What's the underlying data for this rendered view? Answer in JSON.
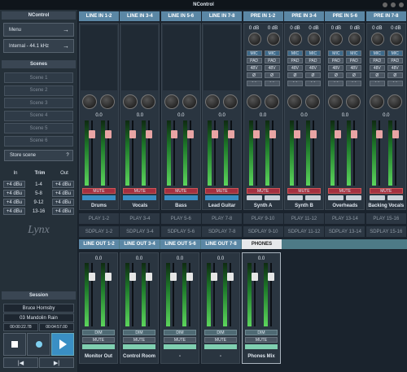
{
  "title": "NControl",
  "sidebar": {
    "header": "NControl",
    "menu": "Menu",
    "clock": "Internal - 44.1 kHz",
    "scenes_title": "Scenes",
    "scenes": [
      "Scene 1",
      "Scene 2",
      "Scene 3",
      "Scene 4",
      "Scene 5",
      "Scene 6"
    ],
    "store_scene": "Store scene",
    "help": "?",
    "trim_headers": [
      "In",
      "Trim",
      "Out"
    ],
    "trim_rows": [
      [
        "+4 dBu",
        "1-4",
        "+4 dBu"
      ],
      [
        "+4 dBu",
        "5-8",
        "+4 dBu"
      ],
      [
        "+4 dBu",
        "9-12",
        "+4 dBu"
      ],
      [
        "+4 dBu",
        "13-16",
        "+4 dBu"
      ]
    ],
    "logo": "Lynx",
    "session": {
      "title": "Session",
      "artist": "Bruce Hornsby",
      "song": "03 Mandolin Rain",
      "position": "00:00:22.78",
      "length": "00:04:57.00"
    }
  },
  "inputs": [
    {
      "tab": "LINE IN 1-2",
      "level": "0.0",
      "mute": "MUTE",
      "name": "Drums"
    },
    {
      "tab": "LINE IN 3-4",
      "level": "0.0",
      "mute": "MUTE",
      "name": "Vocals"
    },
    {
      "tab": "LINE IN 5-6",
      "level": "0.0",
      "mute": "MUTE",
      "name": "Bass"
    },
    {
      "tab": "LINE IN 7-8",
      "level": "0.0",
      "mute": "MUTE",
      "name": "Lead Guitar"
    },
    {
      "tab": "PRE IN 1-2",
      "level": "0.0",
      "mute": "MUTE",
      "name": "Synth A",
      "pre": {
        "gain": [
          "0 dB",
          "0 dB"
        ],
        "buttons": [
          [
            "MIC",
            "MIC"
          ],
          [
            "PAD",
            "PAD"
          ],
          [
            "48V",
            "48V"
          ],
          [
            "Ø",
            "Ø"
          ]
        ]
      }
    },
    {
      "tab": "PRE IN 3-4",
      "level": "0.0",
      "mute": "MUTE",
      "name": "Synth B",
      "pre": {
        "gain": [
          "0 dB",
          "0 dB"
        ],
        "buttons": [
          [
            "MIC",
            "MIC"
          ],
          [
            "PAD",
            "PAD"
          ],
          [
            "48V",
            "48V"
          ],
          [
            "Ø",
            "Ø"
          ]
        ]
      }
    },
    {
      "tab": "PRE IN 5-6",
      "level": "0.0",
      "mute": "MUTE",
      "name": "Overheads",
      "pre": {
        "gain": [
          "0 dB",
          "0 dB"
        ],
        "buttons": [
          [
            "MIC",
            "MIC"
          ],
          [
            "PAD",
            "PAD"
          ],
          [
            "48V",
            "48V"
          ],
          [
            "Ø",
            "Ø"
          ]
        ]
      }
    },
    {
      "tab": "PRE IN 7-8",
      "level": "0.0",
      "mute": "MUTE",
      "name": "Backing Vocals",
      "pre": {
        "gain": [
          "0 dB",
          "0 dB"
        ],
        "buttons": [
          [
            "MIC",
            "MIC"
          ],
          [
            "PAD",
            "PAD"
          ],
          [
            "48V",
            "48V"
          ],
          [
            "Ø",
            "Ø"
          ]
        ]
      }
    }
  ],
  "play": [
    "PLAY 1-2",
    "PLAY 3-4",
    "PLAY 5-6",
    "PLAY 7-8",
    "PLAY 9-10",
    "PLAY 11-12",
    "PLAY 13-14",
    "PLAY 15-16"
  ],
  "sdplay": [
    "SDPLAY 1-2",
    "SDPLAY 3-4",
    "SDPLAY 5-6",
    "SDPLAY 7-8",
    "SDPLAY 9-10",
    "SDPLAY 11-12",
    "SDPLAY 13-14",
    "SDPLAY 15-16"
  ],
  "outputs": [
    {
      "tab": "LINE OUT 1-2",
      "level": "0.0",
      "dim": "DIM",
      "mute": "MUTE",
      "name": "Monitor Out"
    },
    {
      "tab": "LINE OUT 3-4",
      "level": "0.0",
      "dim": "DIM",
      "mute": "MUTE",
      "name": "Control Room"
    },
    {
      "tab": "LINE OUT 5-6",
      "level": "0.0",
      "dim": "DIM",
      "mute": "MUTE",
      "name": "-"
    },
    {
      "tab": "LINE OUT 7-8",
      "level": "0.0",
      "dim": "DIM",
      "mute": "MUTE",
      "name": "-"
    },
    {
      "tab": "PHONES",
      "level": "0.0",
      "dim": "DIM",
      "mute": "MUTE",
      "name": "Phones Mix"
    }
  ]
}
